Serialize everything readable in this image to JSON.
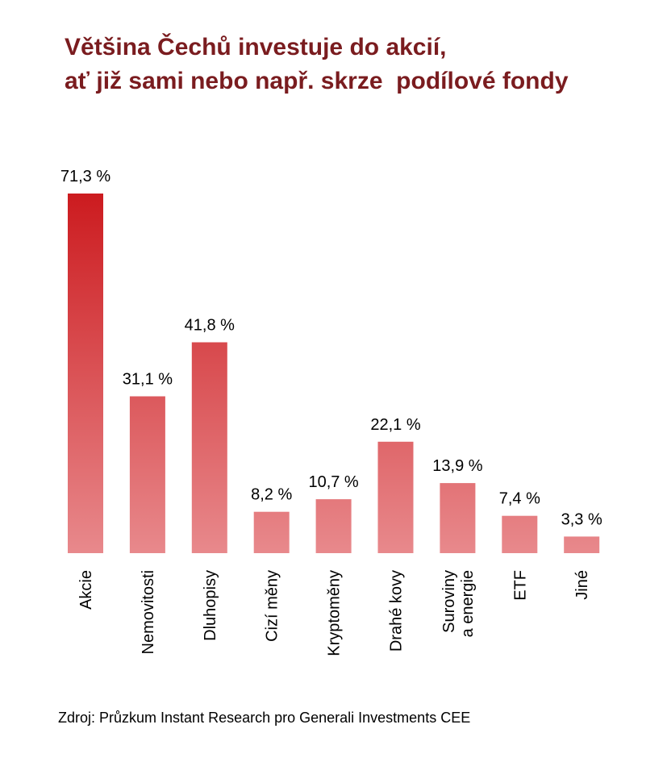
{
  "title_lines": [
    "Většina Čechů investuje do akcií,",
    "ať již sami nebo např. skrze  podílové fondy"
  ],
  "source": "Zdroj: Průzkum Instant Research pro Generali Investments CEE",
  "colors": {
    "title": "#7a1c1f",
    "bar_top": "#cc1b1f",
    "bar_bottom": "#e8898c"
  },
  "chart_data": {
    "type": "bar",
    "title": "Většina Čechů investuje do akcií, ať již sami nebo např. skrze  podílové fondy",
    "categories": [
      [
        "Akcie"
      ],
      [
        "Nemovitosti"
      ],
      [
        "Dluhopisy"
      ],
      [
        "Cizí měny"
      ],
      [
        "Kryptoměny"
      ],
      [
        "Drahé kovy"
      ],
      [
        "Suroviny",
        "a energie"
      ],
      [
        "ETF"
      ],
      [
        "Jiné"
      ]
    ],
    "values": [
      71.3,
      31.1,
      41.8,
      8.2,
      10.7,
      22.1,
      13.9,
      7.4,
      3.3
    ],
    "value_labels": [
      "71,3 %",
      "31,1 %",
      "41,8 %",
      "8,2 %",
      "10,7 %",
      "22,1 %",
      "13,9 %",
      "7,4 %",
      "3,3 %"
    ],
    "unit": "%",
    "ylim": [
      0,
      71.3
    ],
    "grid": false,
    "legend": "none"
  }
}
